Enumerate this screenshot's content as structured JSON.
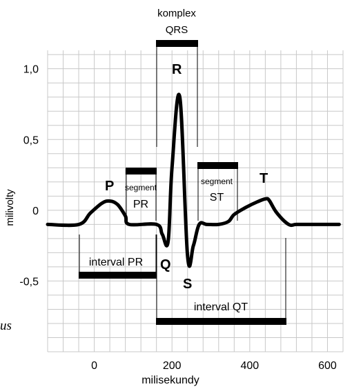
{
  "chart_data": {
    "type": "line",
    "xlabel": "milisekundy",
    "ylabel": "milivolty",
    "xlim": [
      -120,
      640
    ],
    "ylim": [
      -1.0,
      1.13
    ],
    "grid": true,
    "x_ticks": [
      {
        "value": 0,
        "label": "0"
      },
      {
        "value": 200,
        "label": "200"
      },
      {
        "value": 400,
        "label": "400"
      },
      {
        "value": 600,
        "label": "600"
      }
    ],
    "y_ticks": [
      {
        "value": 1.0,
        "label": "1,0"
      },
      {
        "value": 0.5,
        "label": "0,5"
      },
      {
        "value": 0,
        "label": "0"
      },
      {
        "value": -0.5,
        "label": "-0,5"
      }
    ],
    "series": [
      {
        "x": [
          -120,
          -40,
          -10,
          20,
          40,
          60,
          80,
          90,
          160,
          175,
          190,
          200,
          220,
          240,
          255,
          270,
          290,
          320,
          345,
          360,
          390,
          420,
          440,
          450,
          470,
          500,
          520,
          560,
          630
        ],
        "y": [
          -0.1,
          -0.1,
          -0.02,
          0.05,
          0.065,
          0.04,
          -0.04,
          -0.1,
          -0.1,
          -0.17,
          -0.22,
          0.3,
          0.8,
          -0.32,
          -0.25,
          -0.1,
          -0.1,
          -0.1,
          -0.08,
          -0.03,
          0.02,
          0.06,
          0.08,
          0.07,
          -0.02,
          -0.1,
          -0.1,
          -0.1,
          -0.1
        ]
      }
    ]
  },
  "waves": {
    "P": "P",
    "Q": "Q",
    "R": "R",
    "S": "S",
    "T": "T"
  },
  "segments": {
    "qrs_line1": "komplex",
    "qrs_line2": "QRS",
    "pr_segment_line1": "segment",
    "pr_segment_line2": "PR",
    "st_segment_line1": "segment",
    "st_segment_line2": "ST",
    "pr_interval": "interval PR",
    "qt_interval": "interval QT"
  },
  "cut_text": "us"
}
